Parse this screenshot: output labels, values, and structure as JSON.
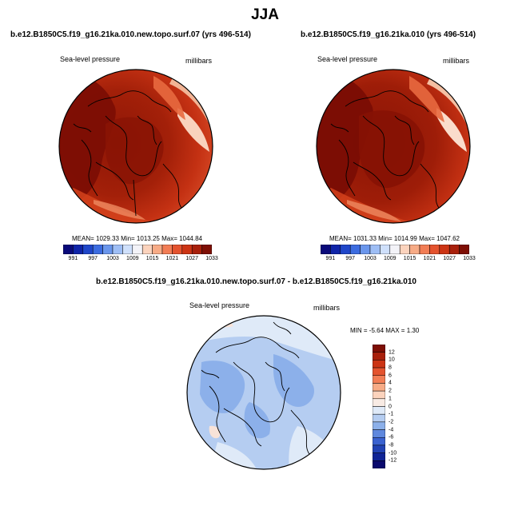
{
  "page_title": "JJA",
  "left_panel": {
    "case": "b.e12.B1850C5.f19_g16.21ka.010.new.topo.surf.07 (yrs 496-514)",
    "variable": "Sea-level pressure",
    "units": "millibars",
    "stats": "MEAN= 1029.33  Min= 1013.25  Max= 1044.84"
  },
  "right_panel": {
    "case": "b.e12.B1850C5.f19_g16.21ka.010 (yrs 496-514)",
    "variable": "Sea-level pressure",
    "units": "millibars",
    "stats": "MEAN= 1031.33  Min= 1014.99  Max= 1047.62"
  },
  "diff_panel": {
    "title": "b.e12.B1850C5.f19_g16.21ka.010.new.topo.surf.07 - b.e12.B1850C5.f19_g16.21ka.010",
    "variable": "Sea-level pressure",
    "units": "millibars",
    "stats": "MIN =  -5.64 MAX =   1.30"
  },
  "colorbar_abs": {
    "tick_labels": [
      "991",
      "997",
      "1003",
      "1009",
      "1015",
      "1021",
      "1027",
      "1033"
    ],
    "colors": [
      "#0a0a7a",
      "#0f24a8",
      "#1f46c9",
      "#3c6ce0",
      "#6a96ec",
      "#9ebef5",
      "#cfe0fb",
      "#f3f3f8",
      "#fbd3bd",
      "#f7ab86",
      "#f27d55",
      "#e4532e",
      "#cc3414",
      "#a8200b",
      "#7e0f05"
    ]
  },
  "colorbar_diff": {
    "tick_labels": [
      "12",
      "10",
      "8",
      "6",
      "4",
      "2",
      "1",
      "0",
      "-1",
      "-2",
      "-4",
      "-6",
      "-8",
      "-10",
      "-12"
    ],
    "colors": [
      "#7e0f05",
      "#a8200b",
      "#cc3414",
      "#e4532e",
      "#f27d55",
      "#f7ab86",
      "#fbd3bd",
      "#f8ebe4",
      "#dfeaf8",
      "#b5cdf1",
      "#8cb0ea",
      "#5f88de",
      "#3a62d0",
      "#2142b4",
      "#0f2496",
      "#0a0a6e"
    ]
  }
}
